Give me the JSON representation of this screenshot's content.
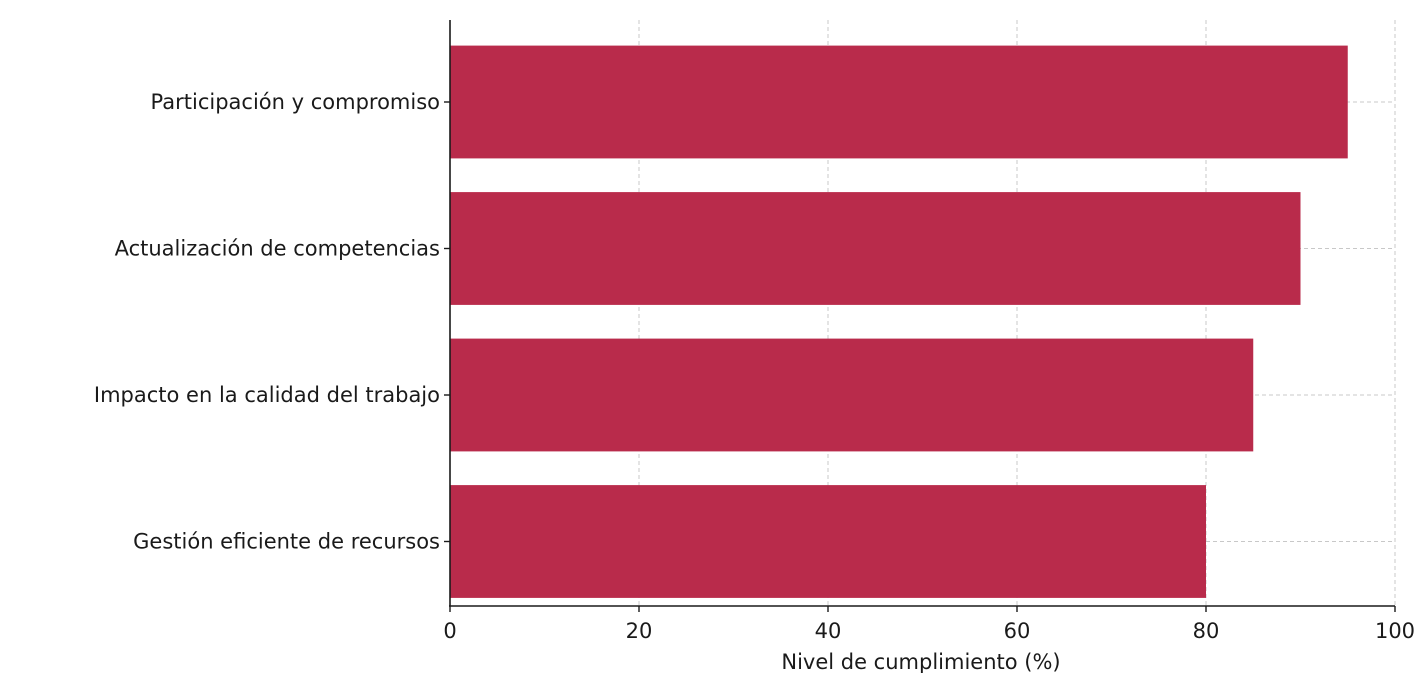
{
  "chart_data": {
    "type": "bar",
    "orientation": "horizontal",
    "categories": [
      "Participación y compromiso",
      "Actualización de competencias",
      "Impacto en la calidad del trabajo",
      "Gestión eficiente de recursos"
    ],
    "values": [
      95,
      90,
      85,
      80
    ],
    "title": "",
    "xlabel": "Nivel de cumplimiento (%)",
    "ylabel": "",
    "xlim": [
      0,
      100
    ],
    "xticks": [
      "0",
      "20",
      "40",
      "60",
      "80",
      "100"
    ],
    "grid": true,
    "bar_color": "#b92b4b",
    "grid_color": "#c8c8c8",
    "axis_color": "#1a1a1a"
  }
}
